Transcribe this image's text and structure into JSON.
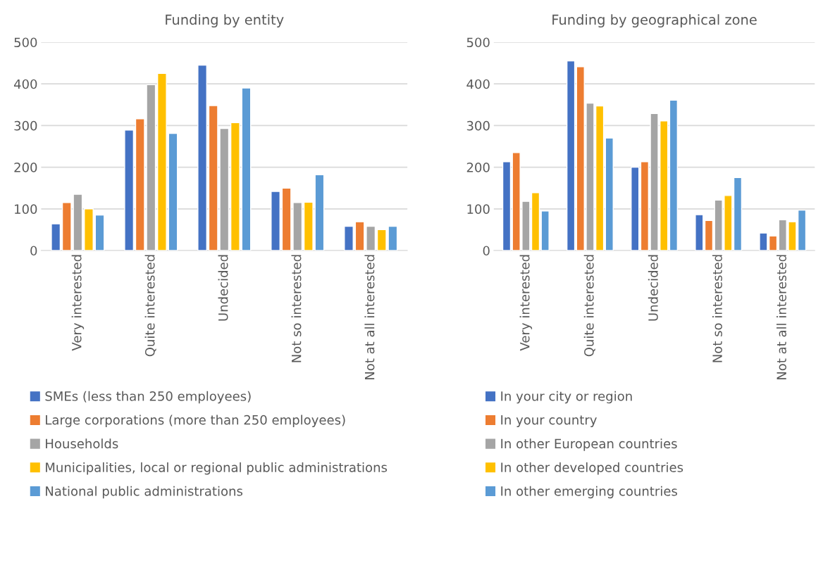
{
  "chart_data": [
    {
      "type": "bar",
      "title": "Funding by entity",
      "categories": [
        "Very interested",
        "Quite interested",
        "Undecided",
        "Not so interested",
        "Not at all interested"
      ],
      "ylim": [
        0,
        500
      ],
      "yticks": [
        0,
        100,
        200,
        300,
        400,
        500
      ],
      "grid": "y",
      "legend": "bottom",
      "series": [
        {
          "name": "SMEs (less than 250 employees)",
          "color": "#4472c4",
          "values": [
            64,
            289,
            445,
            142,
            58
          ]
        },
        {
          "name": "Large corporations (more than 250 employees)",
          "color": "#ed7d31",
          "values": [
            115,
            316,
            348,
            150,
            69
          ]
        },
        {
          "name": "Households",
          "color": "#a5a5a5",
          "values": [
            135,
            398,
            293,
            115,
            58
          ]
        },
        {
          "name": "Municipalities, local or regional public administrations",
          "color": "#ffc000",
          "values": [
            100,
            425,
            307,
            116,
            50
          ]
        },
        {
          "name": "National public administrations",
          "color": "#5b9bd5",
          "values": [
            85,
            281,
            390,
            182,
            58
          ]
        }
      ]
    },
    {
      "type": "bar",
      "title": "Funding by geographical zone",
      "categories": [
        "Very interested",
        "Quite interested",
        "Undecided",
        "Not so interested",
        "Not at all interested"
      ],
      "ylim": [
        0,
        500
      ],
      "yticks": [
        0,
        100,
        200,
        300,
        400,
        500
      ],
      "grid": "y",
      "legend": "bottom",
      "series": [
        {
          "name": "In your city or region",
          "color": "#4472c4",
          "values": [
            213,
            455,
            200,
            86,
            42
          ]
        },
        {
          "name": "In your country",
          "color": "#ed7d31",
          "values": [
            235,
            441,
            213,
            72,
            35
          ]
        },
        {
          "name": "In other European countries",
          "color": "#a5a5a5",
          "values": [
            118,
            354,
            329,
            121,
            74
          ]
        },
        {
          "name": "In other developed countries",
          "color": "#ffc000",
          "values": [
            139,
            347,
            311,
            132,
            69
          ]
        },
        {
          "name": "In other emerging countries",
          "color": "#5b9bd5",
          "values": [
            95,
            270,
            361,
            175,
            97
          ]
        }
      ]
    }
  ]
}
